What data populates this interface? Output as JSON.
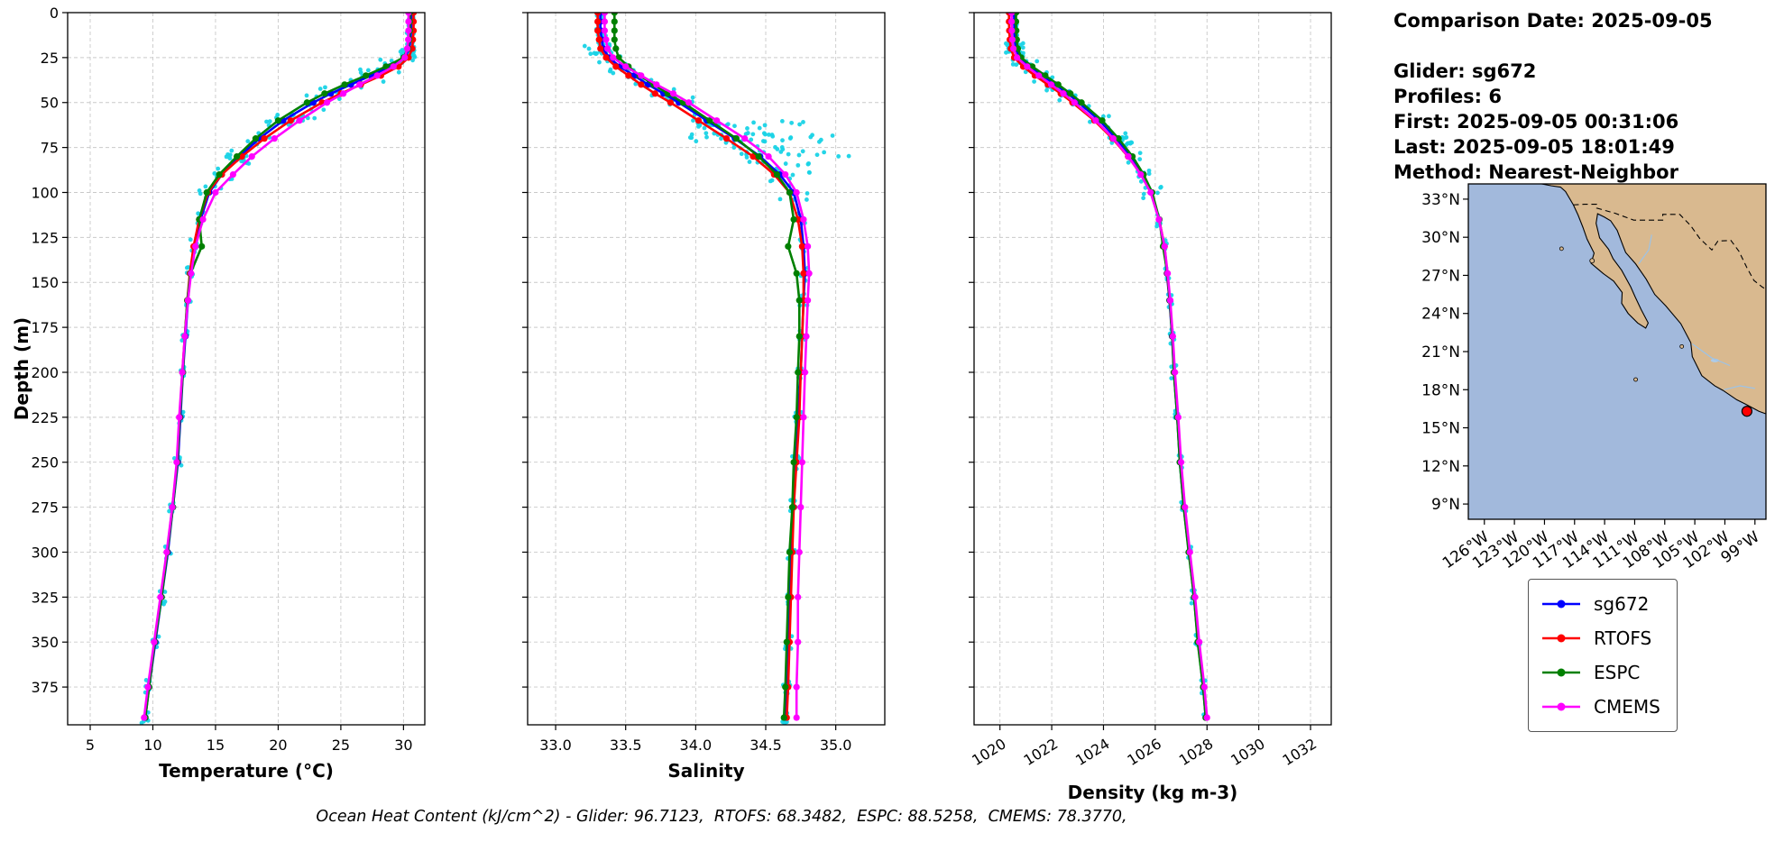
{
  "info": {
    "lines": [
      "Comparison Date: 2025-09-05",
      "Glider: sg672",
      "Profiles: 6",
      "First: 2025-09-05 00:31:06",
      "Last: 2025-09-05 18:01:49",
      "Method: Nearest-Neighbor"
    ]
  },
  "caption": {
    "text": "Ocean Heat Content (kJ/cm^2) - Glider: 96.7123,  RTOFS: 68.3482,  ESPC: 88.5258,  CMEMS: 78.3770,"
  },
  "legend": {
    "position": "right-below-map",
    "items": [
      {
        "label": "sg672",
        "color": "#0000ff"
      },
      {
        "label": "RTOFS",
        "color": "#ff0000"
      },
      {
        "label": "ESPC",
        "color": "#008000"
      },
      {
        "label": "CMEMS",
        "color": "#ff00ff"
      }
    ]
  },
  "chart_data": [
    {
      "type": "line",
      "title": "",
      "xlabel": "Temperature (°C)",
      "ylabel": "Depth (m)",
      "grid": true,
      "show_yticklabels": true,
      "xtick_rotation": 0,
      "xlim": [
        3.2,
        31.7
      ],
      "ylim": [
        0,
        396
      ],
      "xticks": [
        5,
        10,
        15,
        20,
        25,
        30
      ],
      "xtick_labels": [
        "5",
        "10",
        "15",
        "20",
        "25",
        "30"
      ],
      "yticks": [
        0,
        25,
        50,
        75,
        100,
        125,
        150,
        175,
        200,
        225,
        250,
        275,
        300,
        325,
        350,
        375
      ],
      "depths": [
        0,
        5,
        10,
        15,
        20,
        25,
        30,
        35,
        40,
        45,
        50,
        60,
        70,
        80,
        90,
        100,
        115,
        130,
        145,
        160,
        180,
        200,
        225,
        250,
        275,
        300,
        325,
        350,
        375,
        392
      ],
      "series": [
        {
          "name": "sg672",
          "color": "#0000ff",
          "values": [
            30.6,
            30.6,
            30.6,
            30.55,
            30.45,
            30.1,
            28.9,
            27.4,
            25.8,
            24.2,
            22.8,
            20.4,
            18.5,
            16.9,
            15.5,
            14.5,
            13.8,
            13.3,
            13.0,
            12.8,
            12.6,
            12.4,
            12.2,
            12.0,
            11.6,
            11.2,
            10.7,
            10.2,
            9.7,
            9.4
          ]
        },
        {
          "name": "RTOFS",
          "color": "#ff0000",
          "values": [
            30.8,
            30.8,
            30.8,
            30.75,
            30.7,
            30.4,
            29.6,
            28.2,
            26.6,
            25.0,
            23.5,
            21.0,
            18.9,
            17.1,
            15.5,
            14.4,
            13.7,
            13.25,
            12.95,
            12.75,
            12.55,
            12.35,
            12.15,
            11.95,
            11.55,
            11.15,
            10.65,
            10.15,
            9.65,
            9.35
          ]
        },
        {
          "name": "ESPC",
          "color": "#008000",
          "values": [
            30.5,
            30.5,
            30.5,
            30.45,
            30.35,
            30.0,
            28.6,
            27.0,
            25.3,
            23.7,
            22.3,
            20.0,
            18.2,
            16.7,
            15.3,
            14.3,
            13.7,
            13.9,
            13.0,
            12.75,
            12.55,
            12.4,
            12.15,
            11.95,
            11.6,
            11.15,
            10.7,
            10.15,
            9.7,
            9.4
          ]
        },
        {
          "name": "CMEMS",
          "color": "#ff00ff",
          "values": [
            30.4,
            30.4,
            30.4,
            30.38,
            30.3,
            30.1,
            29.2,
            27.9,
            26.5,
            25.2,
            23.9,
            21.7,
            19.7,
            17.9,
            16.4,
            15.0,
            14.0,
            13.4,
            13.05,
            12.8,
            12.55,
            12.35,
            12.1,
            11.9,
            11.55,
            11.1,
            10.6,
            10.1,
            9.6,
            9.3
          ]
        }
      ],
      "scatter": {
        "name": "glider-raw-points",
        "color": "#19d3e6",
        "n_per_level": 6,
        "jitter": 0.3,
        "jitter_thermocline": 1.0,
        "thermocline": [
          25,
          110
        ],
        "depth_jitter": 4,
        "bands": [
          {
            "depth": 22,
            "x_from": 29.7,
            "x_to": 30.9,
            "n": 25
          },
          {
            "depth": 60,
            "x_from": 19.0,
            "x_to": 23.0,
            "n": 14
          },
          {
            "depth": 80,
            "x_from": 15.8,
            "x_to": 18.0,
            "n": 12
          }
        ]
      }
    },
    {
      "type": "line",
      "title": "",
      "xlabel": "Salinity",
      "ylabel": "",
      "grid": true,
      "show_yticklabels": false,
      "xtick_rotation": 0,
      "xlim": [
        32.8,
        35.35
      ],
      "ylim": [
        0,
        396
      ],
      "xticks": [
        33.0,
        33.5,
        34.0,
        34.5,
        35.0
      ],
      "xtick_labels": [
        "33.0",
        "33.5",
        "34.0",
        "34.5",
        "35.0"
      ],
      "yticks": [
        0,
        25,
        50,
        75,
        100,
        125,
        150,
        175,
        200,
        225,
        250,
        275,
        300,
        325,
        350,
        375
      ],
      "depths": [
        0,
        5,
        10,
        15,
        20,
        25,
        30,
        35,
        40,
        45,
        50,
        60,
        70,
        80,
        90,
        100,
        115,
        130,
        145,
        160,
        180,
        200,
        225,
        250,
        275,
        300,
        325,
        350,
        375,
        392
      ],
      "series": [
        {
          "name": "sg672",
          "color": "#0000ff",
          "values": [
            33.32,
            33.32,
            33.32,
            33.33,
            33.34,
            33.38,
            33.46,
            33.56,
            33.66,
            33.77,
            33.88,
            34.08,
            34.28,
            34.46,
            34.6,
            34.7,
            34.75,
            34.77,
            34.78,
            34.77,
            34.76,
            34.75,
            34.73,
            34.71,
            34.7,
            34.68,
            34.67,
            34.66,
            34.65,
            34.64
          ]
        },
        {
          "name": "RTOFS",
          "color": "#ff0000",
          "values": [
            33.3,
            33.3,
            33.3,
            33.31,
            33.32,
            33.36,
            33.43,
            33.52,
            33.61,
            33.71,
            33.82,
            34.02,
            34.22,
            34.41,
            34.56,
            34.67,
            34.73,
            34.76,
            34.77,
            34.77,
            34.76,
            34.75,
            34.74,
            34.72,
            34.7,
            34.69,
            34.68,
            34.67,
            34.66,
            34.65
          ]
        },
        {
          "name": "ESPC",
          "color": "#008000",
          "values": [
            33.42,
            33.42,
            33.42,
            33.42,
            33.43,
            33.45,
            33.52,
            33.6,
            33.7,
            33.8,
            33.91,
            34.1,
            34.29,
            34.45,
            34.58,
            34.67,
            34.7,
            34.66,
            34.72,
            34.74,
            34.74,
            34.73,
            34.72,
            34.7,
            34.69,
            34.67,
            34.66,
            34.65,
            34.64,
            34.63
          ]
        },
        {
          "name": "CMEMS",
          "color": "#ff00ff",
          "values": [
            33.35,
            33.35,
            33.35,
            33.36,
            33.37,
            33.41,
            33.5,
            33.61,
            33.72,
            33.84,
            33.95,
            34.15,
            34.35,
            34.52,
            34.64,
            34.72,
            34.77,
            34.8,
            34.81,
            34.8,
            34.79,
            34.78,
            34.77,
            34.76,
            34.75,
            34.74,
            34.73,
            34.73,
            34.72,
            34.72
          ]
        }
      ],
      "scatter": {
        "name": "glider-raw-points",
        "color": "#19d3e6",
        "n_per_level": 6,
        "jitter": 0.03,
        "jitter_thermocline": 0.1,
        "thermocline": [
          25,
          110
        ],
        "depth_jitter": 4,
        "bands": [
          {
            "depth": 20,
            "x_from": 33.2,
            "x_to": 33.4,
            "n": 18
          },
          {
            "depth": 62,
            "x_from": 33.95,
            "x_to": 34.8,
            "n": 20
          },
          {
            "depth": 70,
            "x_from": 33.85,
            "x_to": 35.05,
            "n": 28
          },
          {
            "depth": 77,
            "x_from": 34.25,
            "x_to": 35.1,
            "n": 18
          },
          {
            "depth": 86,
            "x_from": 34.45,
            "x_to": 34.95,
            "n": 10
          }
        ]
      }
    },
    {
      "type": "line",
      "title": "",
      "xlabel": "Density (kg m-3)",
      "ylabel": "",
      "grid": true,
      "show_yticklabels": false,
      "xtick_rotation": 30,
      "xlim": [
        1019,
        1032.8
      ],
      "ylim": [
        0,
        396
      ],
      "xticks": [
        1020,
        1022,
        1024,
        1026,
        1028,
        1030,
        1032
      ],
      "xtick_labels": [
        "1020",
        "1022",
        "1024",
        "1026",
        "1028",
        "1030",
        "1032"
      ],
      "yticks": [
        0,
        25,
        50,
        75,
        100,
        125,
        150,
        175,
        200,
        225,
        250,
        275,
        300,
        325,
        350,
        375
      ],
      "depths": [
        0,
        5,
        10,
        15,
        20,
        25,
        30,
        35,
        40,
        45,
        50,
        60,
        70,
        80,
        90,
        100,
        115,
        130,
        145,
        160,
        180,
        200,
        225,
        250,
        275,
        300,
        325,
        350,
        375,
        392
      ],
      "series": [
        {
          "name": "sg672",
          "color": "#0000ff",
          "values": [
            1020.55,
            1020.55,
            1020.56,
            1020.58,
            1020.62,
            1020.75,
            1021.15,
            1021.65,
            1022.15,
            1022.62,
            1023.05,
            1023.85,
            1024.5,
            1025.05,
            1025.5,
            1025.85,
            1026.15,
            1026.35,
            1026.45,
            1026.55,
            1026.65,
            1026.72,
            1026.85,
            1026.95,
            1027.1,
            1027.3,
            1027.5,
            1027.65,
            1027.85,
            1027.95
          ]
        },
        {
          "name": "RTOFS",
          "color": "#ff0000",
          "values": [
            1020.35,
            1020.35,
            1020.36,
            1020.38,
            1020.42,
            1020.55,
            1020.9,
            1021.35,
            1021.85,
            1022.35,
            1022.8,
            1023.65,
            1024.35,
            1024.95,
            1025.45,
            1025.85,
            1026.15,
            1026.36,
            1026.46,
            1026.56,
            1026.66,
            1026.73,
            1026.86,
            1026.96,
            1027.11,
            1027.31,
            1027.51,
            1027.66,
            1027.86,
            1027.96
          ]
        },
        {
          "name": "ESPC",
          "color": "#008000",
          "values": [
            1020.62,
            1020.62,
            1020.63,
            1020.65,
            1020.69,
            1020.82,
            1021.25,
            1021.75,
            1022.25,
            1022.72,
            1023.15,
            1023.95,
            1024.58,
            1025.12,
            1025.55,
            1025.88,
            1026.16,
            1026.3,
            1026.47,
            1026.56,
            1026.66,
            1026.72,
            1026.85,
            1026.95,
            1027.1,
            1027.29,
            1027.5,
            1027.64,
            1027.85,
            1027.95
          ]
        },
        {
          "name": "CMEMS",
          "color": "#ff00ff",
          "values": [
            1020.45,
            1020.45,
            1020.46,
            1020.48,
            1020.52,
            1020.66,
            1021.05,
            1021.5,
            1021.98,
            1022.45,
            1022.88,
            1023.7,
            1024.38,
            1024.96,
            1025.44,
            1025.82,
            1026.14,
            1026.36,
            1026.48,
            1026.58,
            1026.68,
            1026.76,
            1026.89,
            1027.0,
            1027.15,
            1027.34,
            1027.54,
            1027.7,
            1027.9,
            1028.0
          ]
        }
      ],
      "scatter": {
        "name": "glider-raw-points",
        "color": "#19d3e6",
        "n_per_level": 6,
        "jitter": 0.1,
        "jitter_thermocline": 0.4,
        "thermocline": [
          25,
          100
        ],
        "depth_jitter": 4,
        "bands": [
          {
            "depth": 20,
            "x_from": 1020.2,
            "x_to": 1020.9,
            "n": 16
          },
          {
            "depth": 70,
            "x_from": 1024.2,
            "x_to": 1025.1,
            "n": 12
          }
        ]
      }
    }
  ],
  "map": {
    "extent": {
      "lon": [
        -127.6,
        -97.9
      ],
      "lat": [
        7.8,
        34.2
      ]
    },
    "colors": {
      "ocean": "#a2b9dc",
      "land": "#d9b98f",
      "coast": "#000000",
      "river": "#9dc3e6",
      "lake": "#aecbe8"
    },
    "lat_ticks": [
      33,
      30,
      27,
      24,
      21,
      18,
      15,
      12,
      9
    ],
    "lat_labels": [
      "33°N",
      "30°N",
      "27°N",
      "24°N",
      "21°N",
      "18°N",
      "15°N",
      "12°N",
      "9°N"
    ],
    "lon_ticks": [
      -126,
      -123,
      -120,
      -117,
      -114,
      -111,
      -108,
      -105,
      -102,
      -99
    ],
    "lon_labels": [
      "126°W",
      "123°W",
      "120°W",
      "117°W",
      "114°W",
      "111°W",
      "108°W",
      "105°W",
      "102°W",
      "99°W"
    ],
    "land": [
      [
        -120.3,
        34.2
      ],
      [
        -119.3,
        34.05
      ],
      [
        -118.4,
        33.95
      ],
      [
        -117.9,
        33.6
      ],
      [
        -117.12,
        32.55
      ],
      [
        -116.65,
        31.75
      ],
      [
        -116.15,
        30.75
      ],
      [
        -115.75,
        29.85
      ],
      [
        -115.05,
        28.75
      ],
      [
        -115.35,
        27.95
      ],
      [
        -114.15,
        27.15
      ],
      [
        -113.1,
        26.55
      ],
      [
        -112.25,
        25.65
      ],
      [
        -112.3,
        24.8
      ],
      [
        -111.65,
        24.0
      ],
      [
        -110.7,
        23.25
      ],
      [
        -109.9,
        22.85
      ],
      [
        -109.65,
        23.25
      ],
      [
        -110.35,
        24.3
      ],
      [
        -110.95,
        25.3
      ],
      [
        -111.4,
        26.1
      ],
      [
        -112.3,
        27.4
      ],
      [
        -113.15,
        28.3
      ],
      [
        -113.6,
        29.05
      ],
      [
        -114.5,
        29.95
      ],
      [
        -114.85,
        31.1
      ],
      [
        -114.7,
        31.85
      ],
      [
        -114.05,
        31.6
      ],
      [
        -113.4,
        31.3
      ],
      [
        -112.75,
        30.55
      ],
      [
        -112.15,
        29.3
      ],
      [
        -111.9,
        28.8
      ],
      [
        -110.9,
        27.9
      ],
      [
        -109.85,
        26.7
      ],
      [
        -109.0,
        25.5
      ],
      [
        -107.9,
        24.6
      ],
      [
        -106.4,
        23.2
      ],
      [
        -105.4,
        21.7
      ],
      [
        -105.25,
        20.6
      ],
      [
        -104.3,
        19.1
      ],
      [
        -103.0,
        18.3
      ],
      [
        -102.2,
        17.95
      ],
      [
        -100.8,
        17.2
      ],
      [
        -99.9,
        16.85
      ],
      [
        -98.6,
        16.3
      ],
      [
        -97.9,
        16.1
      ],
      [
        -97.9,
        34.2
      ]
    ],
    "border": [
      [
        -117.12,
        32.55
      ],
      [
        -116.0,
        32.6
      ],
      [
        -114.8,
        32.6
      ],
      [
        -114.8,
        32.3
      ],
      [
        -113.0,
        31.9
      ],
      [
        -111.1,
        31.35
      ],
      [
        -108.2,
        31.35
      ],
      [
        -108.2,
        31.8
      ],
      [
        -106.5,
        31.8
      ],
      [
        -105.4,
        30.9
      ],
      [
        -104.5,
        29.9
      ],
      [
        -103.3,
        29.0
      ],
      [
        -102.7,
        29.7
      ],
      [
        -101.4,
        29.75
      ],
      [
        -100.6,
        28.9
      ],
      [
        -99.8,
        27.6
      ],
      [
        -99.1,
        26.6
      ],
      [
        -98.3,
        26.1
      ],
      [
        -97.9,
        25.9
      ]
    ],
    "rivers": [
      [
        [
          -110.6,
          27.9
        ],
        [
          -109.6,
          29.0
        ],
        [
          -109.3,
          30.2
        ]
      ],
      [
        [
          -105.25,
          21.6
        ],
        [
          -103.3,
          20.5
        ],
        [
          -101.5,
          19.9
        ]
      ],
      [
        [
          -102.1,
          18.0
        ],
        [
          -100.5,
          18.3
        ],
        [
          -99.0,
          18.1
        ]
      ]
    ],
    "islands": [
      {
        "lon": -118.3,
        "lat": 29.1,
        "r": 2
      },
      {
        "lon": -115.25,
        "lat": 28.15,
        "r": 2.5
      },
      {
        "lon": -106.3,
        "lat": 21.4,
        "r": 2
      },
      {
        "lon": -110.9,
        "lat": 18.8,
        "r": 2
      }
    ],
    "lake": {
      "lon": -103.0,
      "lat": 20.3,
      "rx": 4.5,
      "ry": 2
    },
    "marker": {
      "name": "glider-location",
      "lon": -99.8,
      "lat": 16.3,
      "color": "#ff0000"
    }
  }
}
